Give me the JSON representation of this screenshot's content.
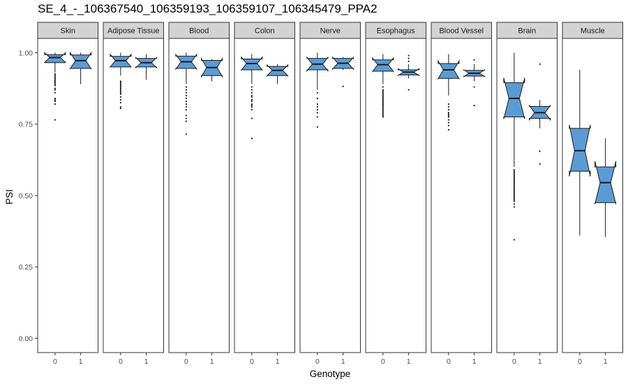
{
  "chart_data": {
    "type": "boxplot",
    "title": "SE_4_-_106367540_106359193_106359107_106345479_PPA2",
    "xlabel": "Genotype",
    "ylabel": "PSI",
    "ylim": [
      -0.05,
      1.05
    ],
    "yticks": [
      0.0,
      0.25,
      0.5,
      0.75,
      1.0
    ],
    "ytick_labels": [
      "0.00",
      "0.25",
      "0.50",
      "0.75",
      "1.00"
    ],
    "categories": [
      "0",
      "1"
    ],
    "notched": true,
    "grid": false,
    "colors": {
      "fill": "#5b9bd5",
      "stroke": "#1a1a1a",
      "strip": "#d3d3d3",
      "border": "#333333"
    },
    "facets": [
      {
        "name": "Skin",
        "boxes": [
          {
            "genotype": "0",
            "min": 0.93,
            "q1": 0.965,
            "median": 0.983,
            "q3": 0.993,
            "max": 1.0,
            "outliers": [
              0.925,
              0.92,
              0.915,
              0.91,
              0.905,
              0.9,
              0.895,
              0.89,
              0.885,
              0.875,
              0.87,
              0.86,
              0.84,
              0.835,
              0.83,
              0.82,
              0.765
            ]
          },
          {
            "genotype": "1",
            "min": 0.89,
            "q1": 0.945,
            "median": 0.972,
            "q3": 0.992,
            "max": 1.0,
            "outliers": []
          }
        ]
      },
      {
        "name": "Adipose Tissue",
        "boxes": [
          {
            "genotype": "0",
            "min": 0.92,
            "q1": 0.95,
            "median": 0.972,
            "q3": 0.987,
            "max": 1.0,
            "outliers": [
              0.9,
              0.895,
              0.89,
              0.885,
              0.88,
              0.875,
              0.87,
              0.865,
              0.86,
              0.855,
              0.845,
              0.835,
              0.825,
              0.81,
              0.805
            ]
          },
          {
            "genotype": "1",
            "min": 0.905,
            "q1": 0.95,
            "median": 0.965,
            "q3": 0.98,
            "max": 0.995,
            "outliers": []
          }
        ]
      },
      {
        "name": "Blood",
        "boxes": [
          {
            "genotype": "0",
            "min": 0.89,
            "q1": 0.945,
            "median": 0.968,
            "q3": 0.988,
            "max": 1.0,
            "outliers": [
              0.88,
              0.87,
              0.86,
              0.85,
              0.84,
              0.83,
              0.82,
              0.81,
              0.8,
              0.78,
              0.77,
              0.76,
              0.715
            ]
          },
          {
            "genotype": "1",
            "min": 0.9,
            "q1": 0.92,
            "median": 0.948,
            "q3": 0.973,
            "max": 0.978,
            "outliers": []
          }
        ]
      },
      {
        "name": "Colon",
        "boxes": [
          {
            "genotype": "0",
            "min": 0.89,
            "q1": 0.94,
            "median": 0.962,
            "q3": 0.978,
            "max": 0.995,
            "outliers": [
              0.88,
              0.87,
              0.86,
              0.85,
              0.845,
              0.835,
              0.83,
              0.82,
              0.815,
              0.81,
              0.8,
              0.77,
              0.7
            ]
          },
          {
            "genotype": "1",
            "min": 0.89,
            "q1": 0.92,
            "median": 0.938,
            "q3": 0.952,
            "max": 0.96,
            "outliers": []
          }
        ]
      },
      {
        "name": "Nerve",
        "boxes": [
          {
            "genotype": "0",
            "min": 0.87,
            "q1": 0.94,
            "median": 0.96,
            "q3": 0.98,
            "max": 1.0,
            "outliers": [
              0.86,
              0.84,
              0.82,
              0.81,
              0.8,
              0.79,
              0.775,
              0.74
            ]
          },
          {
            "genotype": "1",
            "min": 0.94,
            "q1": 0.945,
            "median": 0.963,
            "q3": 0.98,
            "max": 0.985,
            "outliers": [
              0.882
            ]
          }
        ]
      },
      {
        "name": "Esophagus",
        "boxes": [
          {
            "genotype": "0",
            "min": 0.89,
            "q1": 0.935,
            "median": 0.958,
            "q3": 0.975,
            "max": 0.995,
            "outliers": [
              0.88,
              0.87,
              0.865,
              0.86,
              0.855,
              0.85,
              0.845,
              0.84,
              0.835,
              0.83,
              0.825,
              0.82,
              0.815,
              0.81,
              0.805,
              0.8,
              0.795,
              0.79,
              0.785,
              0.78,
              0.775
            ]
          },
          {
            "genotype": "1",
            "min": 0.91,
            "q1": 0.922,
            "median": 0.932,
            "q3": 0.94,
            "max": 0.96,
            "outliers": [
              0.99,
              0.98,
              0.97,
              0.87
            ]
          }
        ]
      },
      {
        "name": "Blood Vessel",
        "boxes": [
          {
            "genotype": "0",
            "min": 0.85,
            "q1": 0.91,
            "median": 0.94,
            "q3": 0.962,
            "max": 0.995,
            "outliers": [
              0.82,
              0.81,
              0.8,
              0.79,
              0.785,
              0.78,
              0.775,
              0.765,
              0.755,
              0.745,
              0.73
            ]
          },
          {
            "genotype": "1",
            "min": 0.9,
            "q1": 0.918,
            "median": 0.928,
            "q3": 0.938,
            "max": 0.96,
            "outliers": [
              0.975,
              0.88,
              0.815
            ]
          }
        ]
      },
      {
        "name": "Brain",
        "boxes": [
          {
            "genotype": "0",
            "min": 0.6,
            "q1": 0.775,
            "median": 0.84,
            "q3": 0.895,
            "max": 1.0,
            "outliers": [
              0.59,
              0.585,
              0.58,
              0.575,
              0.57,
              0.565,
              0.56,
              0.555,
              0.55,
              0.545,
              0.54,
              0.535,
              0.53,
              0.525,
              0.52,
              0.515,
              0.51,
              0.505,
              0.5,
              0.495,
              0.49,
              0.485,
              0.48,
              0.47,
              0.46,
              0.345
            ]
          },
          {
            "genotype": "1",
            "min": 0.735,
            "q1": 0.77,
            "median": 0.79,
            "q3": 0.812,
            "max": 0.835,
            "outliers": [
              0.96,
              0.655,
              0.61
            ]
          }
        ]
      },
      {
        "name": "Muscle",
        "boxes": [
          {
            "genotype": "0",
            "min": 0.36,
            "q1": 0.585,
            "median": 0.657,
            "q3": 0.735,
            "max": 0.94,
            "outliers": []
          },
          {
            "genotype": "1",
            "min": 0.355,
            "q1": 0.475,
            "median": 0.545,
            "q3": 0.6,
            "max": 0.7,
            "outliers": []
          }
        ]
      }
    ]
  }
}
